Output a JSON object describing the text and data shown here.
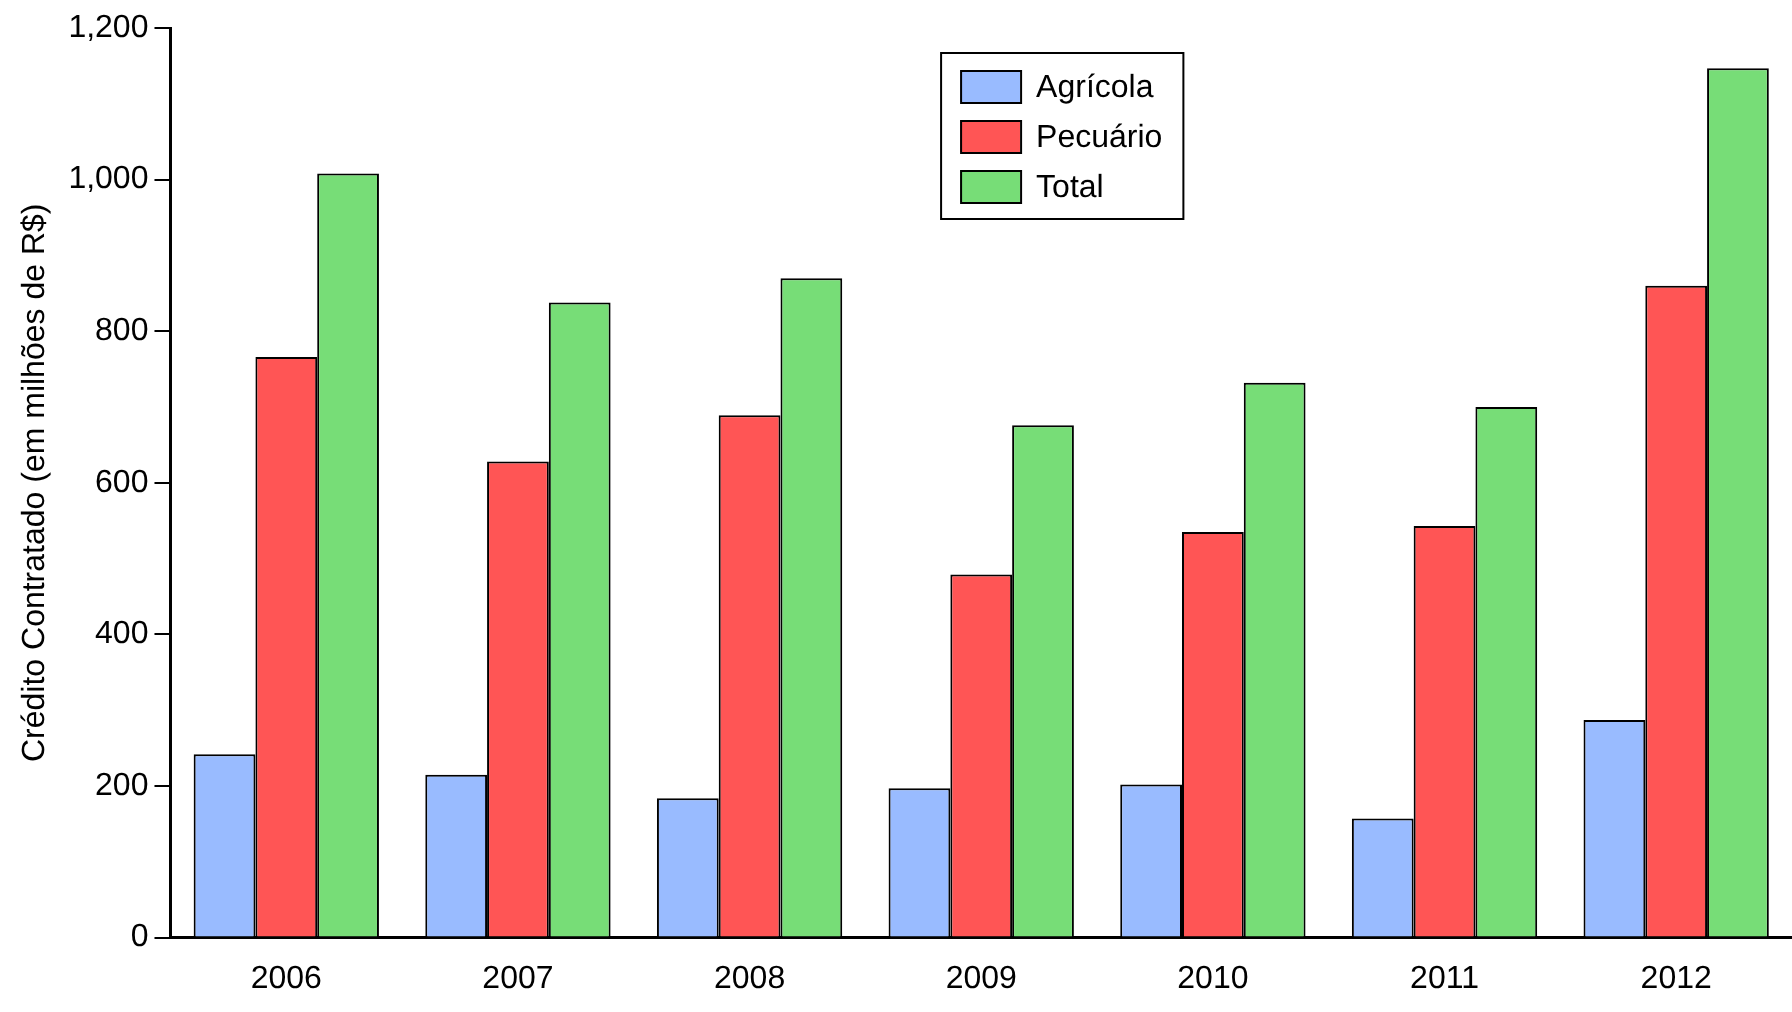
{
  "chart_data": {
    "type": "bar",
    "ylabel": "Crédito Contratado (em milhões de R$)",
    "categories": [
      "2006",
      "2007",
      "2008",
      "2009",
      "2010",
      "2011",
      "2012"
    ],
    "series": [
      {
        "name": "Agrícola",
        "color": "#99bbff",
        "values": [
          242,
          215,
          184,
          197,
          202,
          157,
          287
        ]
      },
      {
        "name": "Pecuário",
        "color": "#ff5555",
        "values": [
          766,
          628,
          689,
          479,
          535,
          543,
          860
        ]
      },
      {
        "name": "Total",
        "color": "#77dd77",
        "values": [
          1008,
          838,
          870,
          676,
          732,
          700,
          1147
        ]
      }
    ],
    "ylim": [
      0,
      1200
    ],
    "yticks": [
      {
        "value": 0,
        "label": "0"
      },
      {
        "value": 200,
        "label": "200"
      },
      {
        "value": 400,
        "label": "400"
      },
      {
        "value": 600,
        "label": "600"
      },
      {
        "value": 800,
        "label": "800"
      },
      {
        "value": 1000,
        "label": "1,000"
      },
      {
        "value": 1200,
        "label": "1,200"
      }
    ],
    "grid": false,
    "legend": "top"
  }
}
